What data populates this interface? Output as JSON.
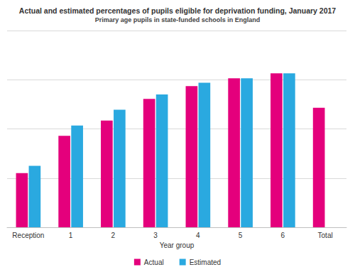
{
  "chart_data": {
    "type": "bar",
    "title": "Actual and estimated percentages of pupils eligible for deprivation funding, January 2017",
    "subtitle": "Primary age pupils in state-funded schools in England",
    "x_label": "Year group",
    "categories": [
      "Reception",
      "1",
      "2",
      "3",
      "4",
      "5",
      "6",
      "Total"
    ],
    "series": [
      {
        "name": "Actual",
        "color": "#e4007c",
        "values": [
          11.0,
          18.6,
          21.7,
          26.1,
          28.7,
          30.3,
          31.3,
          24.3
        ]
      },
      {
        "name": "Estimated",
        "color": "#2aa9e0",
        "values": [
          12.5,
          20.7,
          23.9,
          27.0,
          29.4,
          30.3,
          31.3,
          null
        ]
      }
    ],
    "ylim": [
      0,
      40
    ],
    "yticks": [
      0,
      10,
      20,
      30,
      40
    ],
    "grid": true,
    "legend": "bottom",
    "tick_labels": "x"
  }
}
